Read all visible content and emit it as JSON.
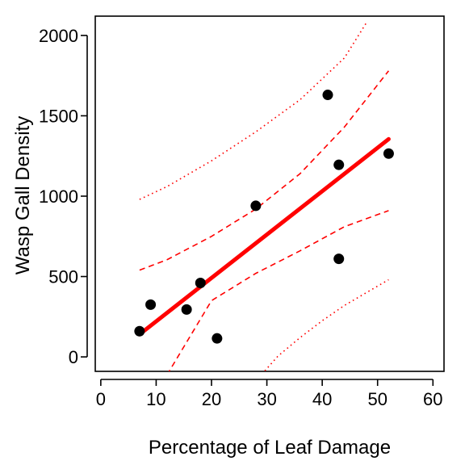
{
  "chart_data": {
    "type": "scatter",
    "title": "",
    "xlabel": "Percentage of Leaf Damage",
    "ylabel": "Wasp Gall Density",
    "xlim": [
      -1,
      62
    ],
    "ylim": [
      -90,
      2120
    ],
    "xticks": [
      0,
      10,
      20,
      30,
      40,
      50,
      60
    ],
    "yticks": [
      0,
      500,
      1000,
      1500,
      2000
    ],
    "xtick_labels": [
      "0",
      "10",
      "20",
      "30",
      "40",
      "50",
      "60"
    ],
    "ytick_labels": [
      "0",
      "500",
      "1000",
      "1500",
      "2000"
    ],
    "grid": false,
    "legend": "none",
    "points": [
      {
        "x": 7,
        "y": 160
      },
      {
        "x": 9,
        "y": 325
      },
      {
        "x": 15.5,
        "y": 295
      },
      {
        "x": 18,
        "y": 460
      },
      {
        "x": 21,
        "y": 115
      },
      {
        "x": 28,
        "y": 940
      },
      {
        "x": 41,
        "y": 1630
      },
      {
        "x": 43,
        "y": 1195
      },
      {
        "x": 43,
        "y": 610
      },
      {
        "x": 52,
        "y": 1265
      }
    ],
    "fit_line": {
      "x": [
        7,
        52
      ],
      "y": [
        140,
        1355
      ]
    },
    "confidence_band": {
      "upper": {
        "x": [
          7,
          12,
          20,
          28,
          36,
          44,
          52
        ],
        "y": [
          540,
          605,
          750,
          920,
          1140,
          1430,
          1780
        ]
      },
      "lower": {
        "x": [
          10,
          12,
          20,
          28,
          36,
          44,
          52
        ],
        "y": [
          -280,
          -110,
          350,
          520,
          660,
          810,
          910
        ]
      }
    },
    "prediction_band": {
      "upper": {
        "x": [
          7,
          12,
          20,
          28,
          36,
          44,
          48
        ],
        "y": [
          980,
          1060,
          1220,
          1400,
          1600,
          1860,
          2080
        ]
      },
      "lower": {
        "x": [
          28,
          32,
          36,
          40,
          44,
          48,
          52
        ],
        "y": [
          -150,
          5,
          120,
          225,
          320,
          400,
          480
        ]
      }
    },
    "colors": {
      "points": "#000000",
      "fit": "#ff0000",
      "bands": "#ff0000"
    }
  }
}
